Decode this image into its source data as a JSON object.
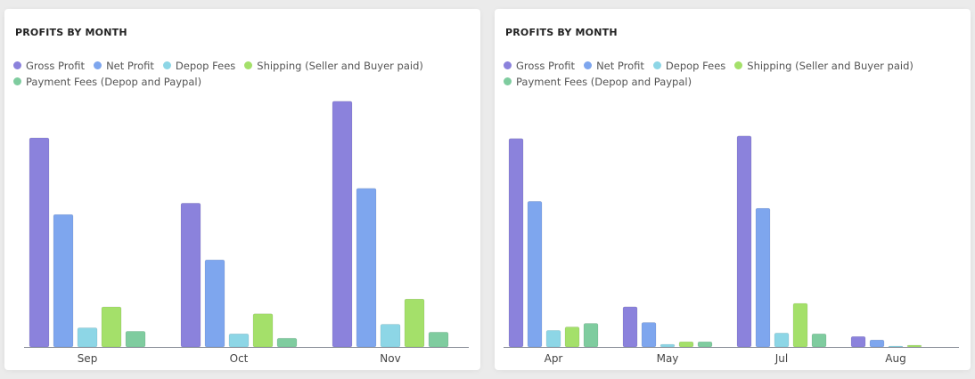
{
  "colors": {
    "Gross Profit": "#8b82dc",
    "Net Profit": "#7ea6ee",
    "Depop Fees": "#8dd6e6",
    "Shipping (Seller and Buyer paid)": "#a4e06a",
    "Payment Fees (Depop and Paypal)": "#7fcc9f"
  },
  "chart_data": [
    {
      "type": "bar",
      "title": "PROFITS BY MONTH",
      "legend_position": "top-left",
      "grid": false,
      "categories": [
        "Sep",
        "Oct",
        "Nov"
      ],
      "ylim": [
        0,
        290
      ],
      "series": [
        {
          "name": "Gross Profit",
          "values": [
            240,
            165,
            282
          ]
        },
        {
          "name": "Net Profit",
          "values": [
            152,
            100,
            182
          ]
        },
        {
          "name": "Depop Fees",
          "values": [
            22,
            15,
            26
          ]
        },
        {
          "name": "Shipping (Seller and Buyer paid)",
          "values": [
            46,
            38,
            55
          ]
        },
        {
          "name": "Payment Fees (Depop and Paypal)",
          "values": [
            18,
            10,
            17
          ]
        }
      ]
    },
    {
      "type": "bar",
      "title": "PROFITS BY MONTH",
      "legend_position": "top-left",
      "grid": false,
      "categories": [
        "Apr",
        "May",
        "Jul",
        "Aug"
      ],
      "ylim": [
        0,
        250
      ],
      "series": [
        {
          "name": "Gross Profit",
          "values": [
            239,
            46,
            242,
            12
          ]
        },
        {
          "name": "Net Profit",
          "values": [
            167,
            28,
            159,
            8
          ]
        },
        {
          "name": "Depop Fees",
          "values": [
            19,
            3,
            16,
            1
          ]
        },
        {
          "name": "Shipping (Seller and Buyer paid)",
          "values": [
            23,
            6,
            50,
            2
          ]
        },
        {
          "name": "Payment Fees (Depop and Paypal)",
          "values": [
            27,
            6,
            15,
            0
          ]
        }
      ]
    }
  ]
}
